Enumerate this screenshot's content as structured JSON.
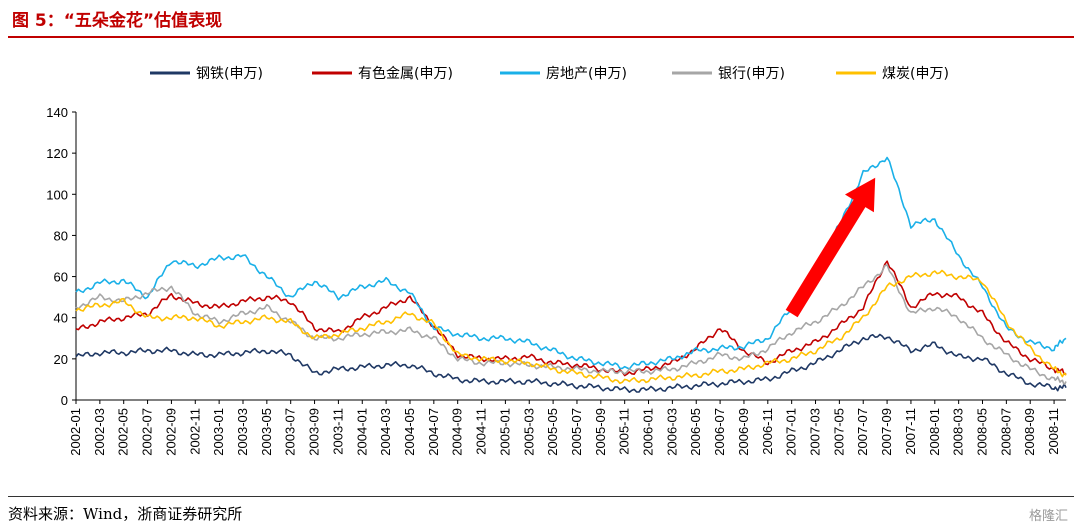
{
  "figure": {
    "title": "图 5：“五朵金花”估值表现",
    "source": "资料来源：Wind，浙商证券研究所",
    "watermark": "格隆汇"
  },
  "chart_data": {
    "type": "line",
    "title": "",
    "xlabel": "",
    "ylabel": "",
    "ylim": [
      0,
      140
    ],
    "yticks": [
      0,
      20,
      40,
      60,
      80,
      100,
      120,
      140
    ],
    "xrange": [
      "2002-01",
      "2008-12"
    ],
    "xticks": [
      "2002-01",
      "2002-03",
      "2002-05",
      "2002-07",
      "2002-09",
      "2002-11",
      "2003-01",
      "2003-03",
      "2003-05",
      "2003-07",
      "2003-09",
      "2003-11",
      "2004-01",
      "2004-03",
      "2004-05",
      "2004-07",
      "2004-09",
      "2004-11",
      "2005-01",
      "2005-03",
      "2005-05",
      "2005-07",
      "2005-09",
      "2005-11",
      "2006-01",
      "2006-03",
      "2006-05",
      "2006-07",
      "2006-09",
      "2006-11",
      "2007-01",
      "2007-03",
      "2007-05",
      "2007-07",
      "2007-09",
      "2007-11",
      "2008-01",
      "2008-03",
      "2008-05",
      "2008-07",
      "2008-09",
      "2008-11"
    ],
    "grid": false,
    "legend": "top",
    "annotations": [
      {
        "type": "arrow",
        "color": "#ff0000",
        "from": [
          "2007-01",
          42
        ],
        "to": [
          "2007-08",
          108
        ]
      }
    ],
    "x": [
      "2002-01",
      "2002-03",
      "2002-05",
      "2002-07",
      "2002-09",
      "2002-11",
      "2003-01",
      "2003-03",
      "2003-05",
      "2003-07",
      "2003-09",
      "2003-11",
      "2004-01",
      "2004-03",
      "2004-05",
      "2004-07",
      "2004-09",
      "2004-11",
      "2005-01",
      "2005-03",
      "2005-05",
      "2005-07",
      "2005-09",
      "2005-11",
      "2006-01",
      "2006-03",
      "2006-05",
      "2006-07",
      "2006-09",
      "2006-11",
      "2007-01",
      "2007-03",
      "2007-05",
      "2007-07",
      "2007-09",
      "2007-11",
      "2008-01",
      "2008-03",
      "2008-05",
      "2008-07",
      "2008-09",
      "2008-11",
      "2008-12"
    ],
    "series": [
      {
        "name": "钢铁(申万)",
        "color": "#1f3864",
        "values": [
          21,
          23,
          23,
          24,
          24,
          22,
          22,
          23,
          24,
          22,
          13,
          15,
          16,
          17,
          17,
          13,
          10,
          9,
          9,
          9,
          8,
          7,
          6,
          5,
          5,
          6,
          7,
          8,
          9,
          10,
          14,
          18,
          24,
          30,
          31,
          24,
          27,
          21,
          20,
          13,
          8,
          6,
          6
        ]
      },
      {
        "name": "有色金属(申万)",
        "color": "#c00000",
        "values": [
          34,
          38,
          40,
          42,
          51,
          47,
          45,
          48,
          50,
          48,
          35,
          33,
          40,
          45,
          50,
          36,
          22,
          20,
          20,
          21,
          18,
          17,
          15,
          13,
          15,
          18,
          25,
          35,
          24,
          18,
          24,
          28,
          36,
          45,
          68,
          45,
          52,
          50,
          42,
          28,
          20,
          15,
          13
        ]
      },
      {
        "name": "房地产(申万)",
        "color": "#1ab0e8",
        "values": [
          52,
          57,
          58,
          50,
          68,
          65,
          69,
          70,
          60,
          50,
          58,
          50,
          55,
          58,
          52,
          35,
          32,
          30,
          30,
          28,
          24,
          20,
          18,
          16,
          18,
          20,
          24,
          25,
          26,
          30,
          45,
          62,
          85,
          110,
          118,
          85,
          88,
          70,
          55,
          35,
          28,
          25,
          30
        ]
      },
      {
        "name": "银行(申万)",
        "color": "#a6a6a6",
        "values": [
          45,
          50,
          48,
          52,
          55,
          42,
          38,
          42,
          45,
          38,
          30,
          30,
          32,
          33,
          34,
          30,
          20,
          18,
          18,
          17,
          16,
          15,
          14,
          14,
          14,
          15,
          18,
          22,
          20,
          25,
          33,
          38,
          45,
          55,
          65,
          42,
          45,
          40,
          30,
          22,
          15,
          10,
          9
        ]
      },
      {
        "name": "煤炭(申万)",
        "color": "#ffc000",
        "values": [
          44,
          46,
          48,
          40,
          40,
          40,
          36,
          38,
          40,
          38,
          30,
          32,
          35,
          38,
          42,
          37,
          22,
          20,
          19,
          18,
          15,
          13,
          11,
          9,
          10,
          11,
          12,
          14,
          15,
          18,
          20,
          24,
          30,
          40,
          55,
          60,
          62,
          60,
          58,
          38,
          25,
          15,
          12
        ]
      }
    ]
  }
}
